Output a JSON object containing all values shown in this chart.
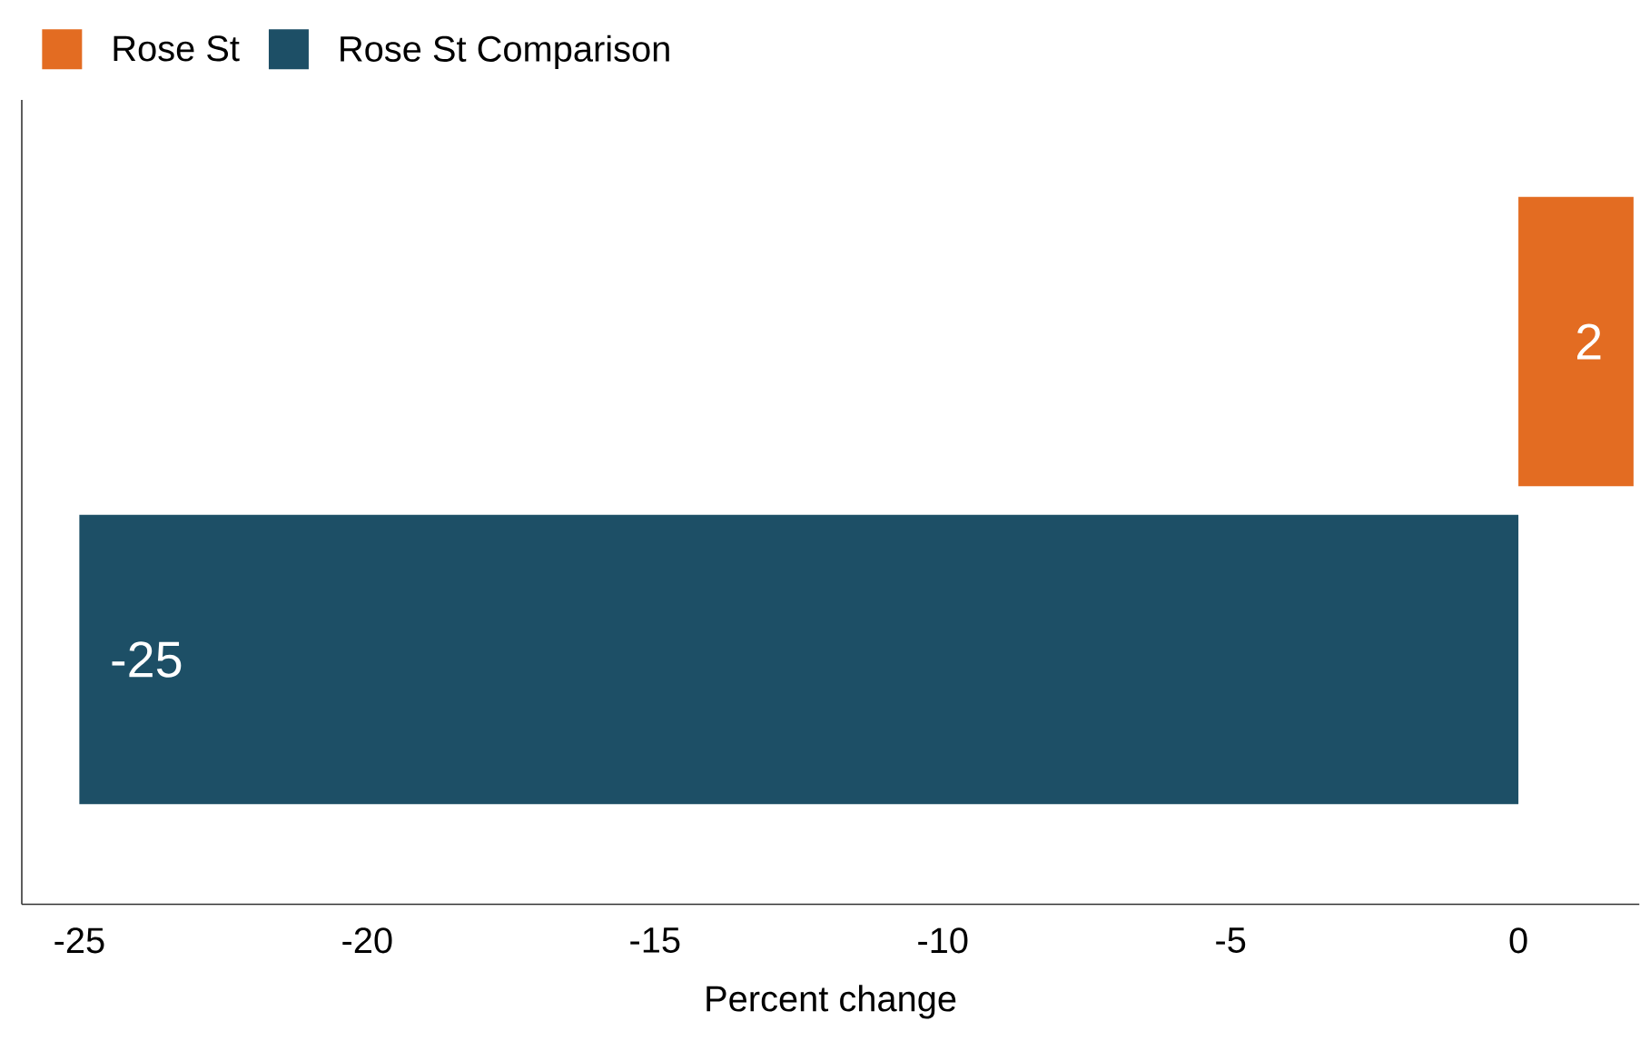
{
  "chart_data": {
    "type": "bar",
    "orientation": "horizontal",
    "xlabel": "Percent change",
    "categories": [
      null,
      null
    ],
    "series": [
      {
        "name": "Rose St",
        "color": "#e36c22",
        "values": [
          2,
          null
        ]
      },
      {
        "name": "Rose St Comparison",
        "color": "#1d4f66",
        "values": [
          null,
          -25
        ]
      }
    ],
    "xlim": [
      -26,
      2.1
    ],
    "xticks": [
      -25,
      -20,
      -15,
      -10,
      -5,
      0
    ],
    "data_labels": true,
    "legend": "top left",
    "grid": false
  }
}
